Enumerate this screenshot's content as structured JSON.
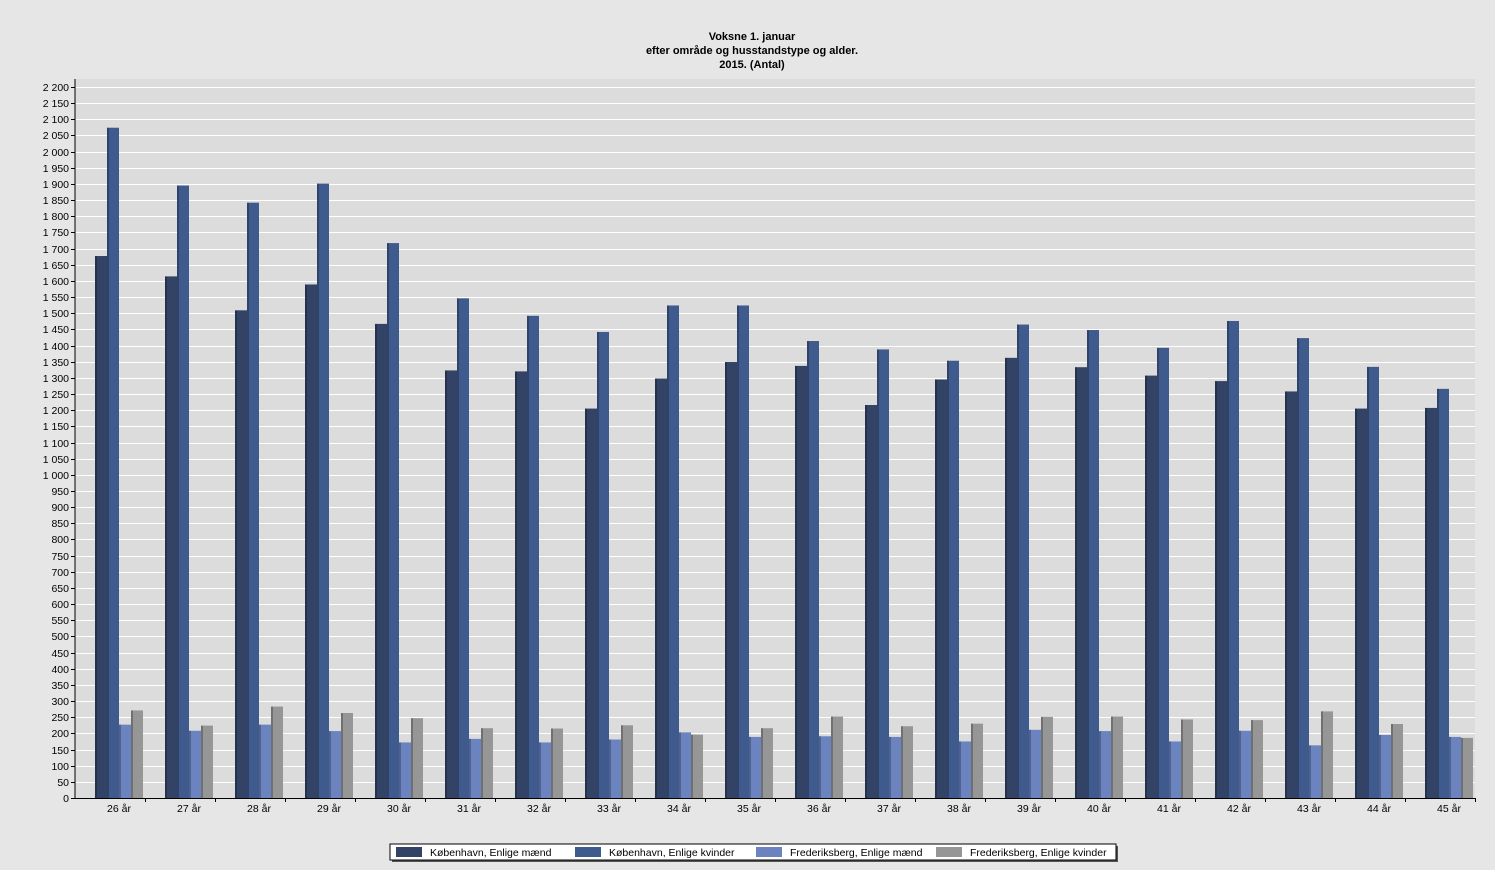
{
  "chart_data": {
    "type": "bar",
    "title": [
      "Voksne 1. januar",
      "efter område og husstandstype og alder.",
      "2015. (Antal)"
    ],
    "ylim": [
      0,
      2200
    ],
    "ytick_step": 50,
    "grid": true,
    "legend_position": "bottom",
    "categories": [
      "26 år",
      "27 år",
      "28 år",
      "29 år",
      "30 år",
      "31 år",
      "32 år",
      "33 år",
      "34 år",
      "35 år",
      "36 år",
      "37 år",
      "38 år",
      "39 år",
      "40 år",
      "41 år",
      "42 år",
      "43 år",
      "44 år",
      "45 år"
    ],
    "series": [
      {
        "name": "København, Enlige mænd",
        "color": "#334366",
        "values": [
          1677,
          1614,
          1509,
          1589,
          1467,
          1323,
          1320,
          1205,
          1298,
          1349,
          1337,
          1216,
          1295,
          1362,
          1333,
          1307,
          1290,
          1258,
          1205,
          1207
        ]
      },
      {
        "name": "København, Enlige kvinder",
        "color": "#3f5a8c",
        "values": [
          2074,
          1895,
          1842,
          1901,
          1717,
          1546,
          1492,
          1442,
          1524,
          1524,
          1414,
          1388,
          1353,
          1465,
          1448,
          1393,
          1476,
          1423,
          1334,
          1266
        ]
      },
      {
        "name": "Frederiksberg, Enlige mænd",
        "color": "#6b84c0",
        "values": [
          227,
          208,
          227,
          207,
          172,
          183,
          172,
          181,
          203,
          189,
          191,
          189,
          175,
          211,
          207,
          175,
          208,
          163,
          195,
          189
        ]
      },
      {
        "name": "Frederiksberg, Enlige kvinder",
        "color": "#969696",
        "values": [
          271,
          224,
          283,
          263,
          247,
          216,
          215,
          225,
          196,
          216,
          252,
          222,
          230,
          251,
          252,
          243,
          241,
          268,
          229,
          186
        ]
      }
    ]
  }
}
